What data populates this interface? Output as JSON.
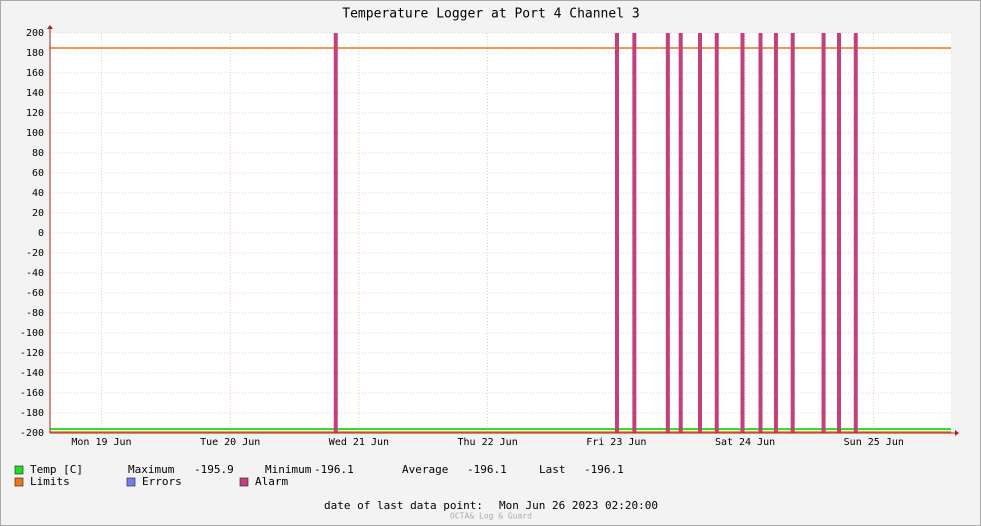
{
  "chart_data": {
    "type": "bar",
    "title": "Temperature Logger at Port 4 Channel 3",
    "xlim": [
      19.1,
      26.1
    ],
    "xticks": [
      {
        "value": 19.5,
        "label": "Mon 19 Jun"
      },
      {
        "value": 20.5,
        "label": "Tue 20 Jun"
      },
      {
        "value": 21.5,
        "label": "Wed 21 Jun"
      },
      {
        "value": 22.5,
        "label": "Thu 22 Jun"
      },
      {
        "value": 23.5,
        "label": "Fri 23 Jun"
      },
      {
        "value": 24.5,
        "label": "Sat 24 Jun"
      },
      {
        "value": 25.5,
        "label": "Sun 25 Jun"
      }
    ],
    "ylim": [
      -200,
      200
    ],
    "yticks": [
      200,
      180,
      160,
      140,
      120,
      100,
      80,
      60,
      40,
      20,
      0,
      -20,
      -40,
      -60,
      -80,
      -100,
      -120,
      -140,
      -160,
      -180,
      -200
    ],
    "grid": true,
    "series": [
      {
        "name": "Temp [C]",
        "color": "#22dd22",
        "kind": "line",
        "x": [
          19.1,
          26.1
        ],
        "values": [
          -196.1,
          -196.1
        ]
      },
      {
        "name": "Limits",
        "color": "#ee7711",
        "kind": "hline",
        "values": [
          185,
          -199
        ]
      },
      {
        "name": "Errors",
        "color": "#7080f0",
        "kind": "bar",
        "x": [],
        "values": []
      },
      {
        "name": "Alarm",
        "color": "#c2407c",
        "kind": "bar",
        "x": [
          21.32,
          23.505,
          23.64,
          23.9,
          24.0,
          24.15,
          24.28,
          24.48,
          24.62,
          24.74,
          24.87,
          25.11,
          25.23,
          25.36
        ],
        "values": [
          200,
          200,
          200,
          200,
          200,
          200,
          200,
          200,
          200,
          200,
          200,
          200,
          200,
          200
        ]
      }
    ],
    "stats": [
      {
        "label": "Maximum",
        "value": -195.9
      },
      {
        "label": "Minimum",
        "value": -196.1
      },
      {
        "label": "Average",
        "value": -196.1
      },
      {
        "label": "Last",
        "value": -196.1
      }
    ],
    "footer_label": "date of last data point:",
    "footer_date": "Mon Jun 26 2023 02:20:00",
    "watermark": "OCTA& Log & Guard"
  }
}
